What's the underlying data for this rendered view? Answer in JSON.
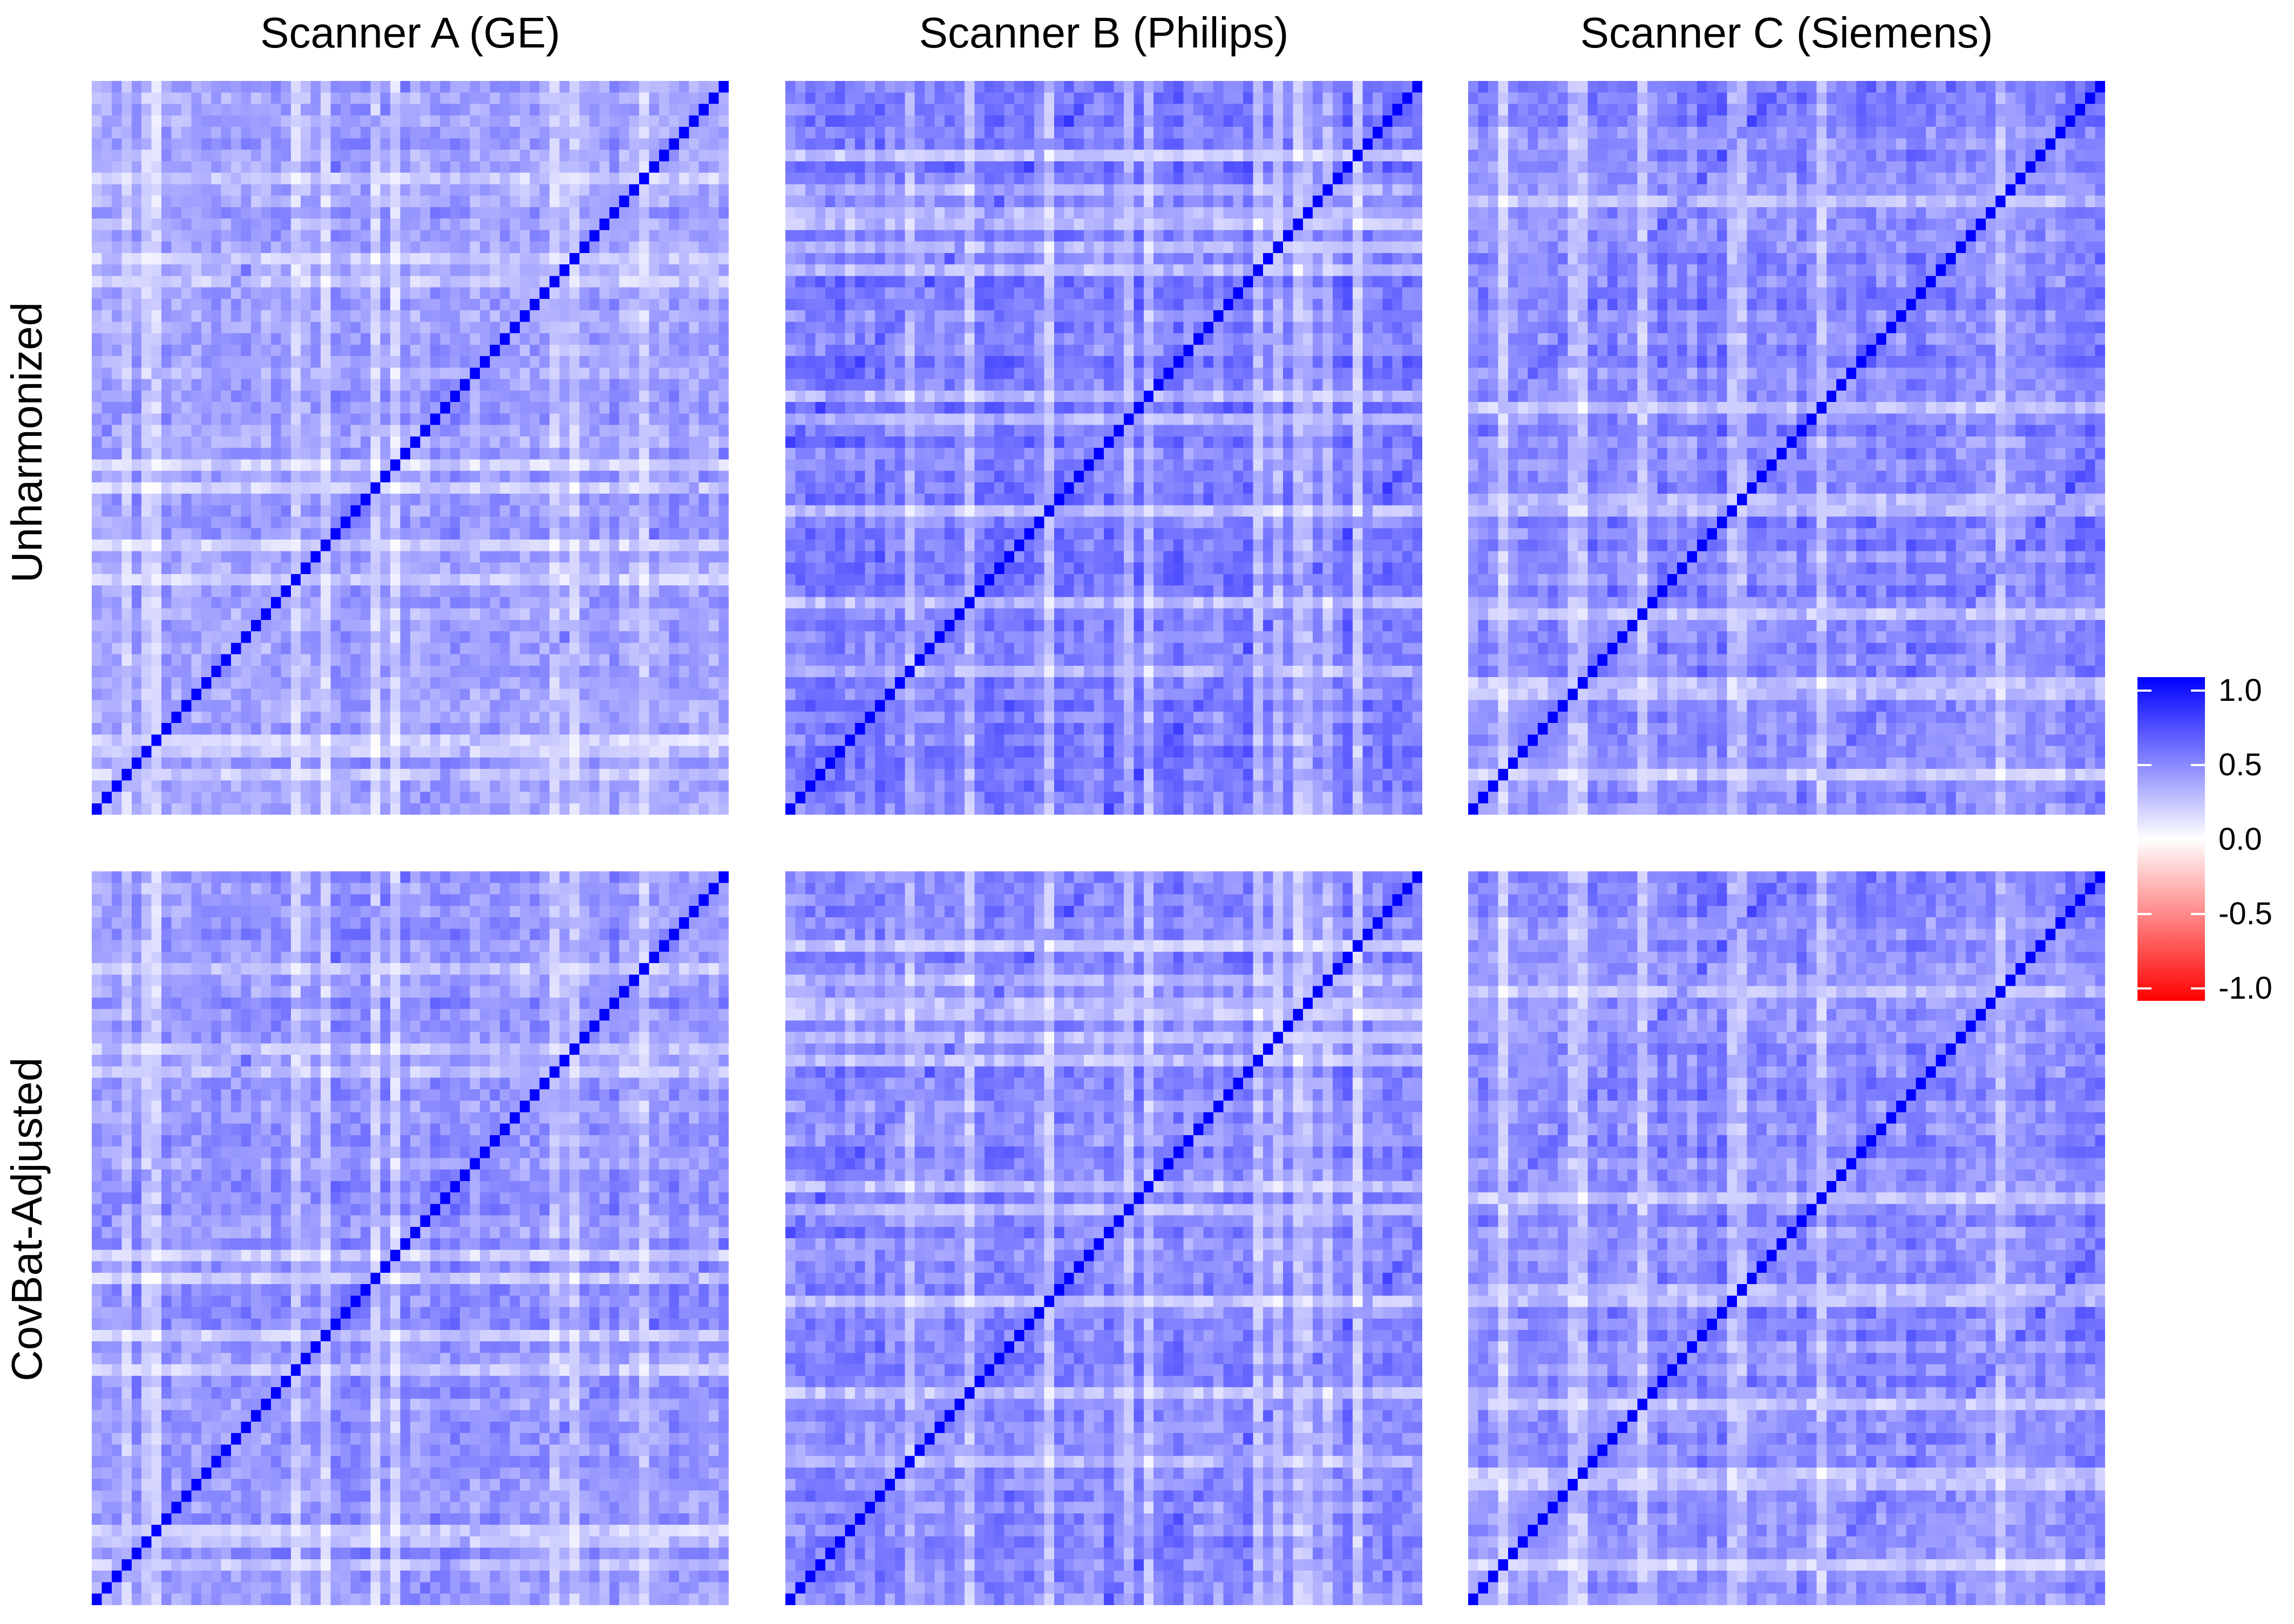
{
  "columns": [
    "Scanner A (GE)",
    "Scanner B (Philips)",
    "Scanner C (Siemens)"
  ],
  "rows": [
    "Unharmonized",
    "CovBat-Adjusted"
  ],
  "legend": {
    "ticks": [
      "1.0",
      "0.5",
      "0.0",
      "-0.5",
      "-1.0"
    ],
    "colors": {
      "high": "#0000ff",
      "mid": "#ffffff",
      "low": "#ff0000"
    }
  },
  "chart_data": {
    "type": "heatmap",
    "matrix_size": 64,
    "value_range": [
      -1.0,
      1.0
    ],
    "diagonal_value": 1.0,
    "panels": [
      {
        "row": "Unharmonized",
        "column": "Scanner A (GE)",
        "typical_off_diagonal": 0.4,
        "seed": 11
      },
      {
        "row": "Unharmonized",
        "column": "Scanner B (Philips)",
        "typical_off_diagonal": 0.55,
        "seed": 23
      },
      {
        "row": "Unharmonized",
        "column": "Scanner C (Siemens)",
        "typical_off_diagonal": 0.5,
        "seed": 37
      },
      {
        "row": "CovBat-Adjusted",
        "column": "Scanner A (GE)",
        "typical_off_diagonal": 0.45,
        "seed": 11
      },
      {
        "row": "CovBat-Adjusted",
        "column": "Scanner B (Philips)",
        "typical_off_diagonal": 0.5,
        "seed": 23
      },
      {
        "row": "CovBat-Adjusted",
        "column": "Scanner C (Siemens)",
        "typical_off_diagonal": 0.48,
        "seed": 37
      }
    ]
  }
}
